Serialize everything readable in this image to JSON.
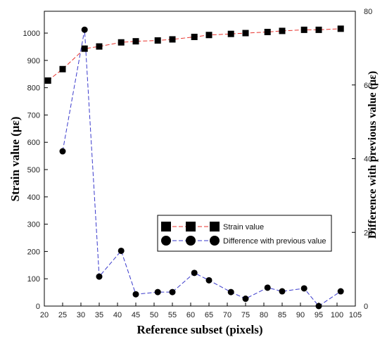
{
  "chart_data": {
    "type": "line",
    "xlabel": "Reference subset (pixels)",
    "ylabel": "Strain value (με)",
    "y2label": "Difference with previous value (με)",
    "xlim": [
      20,
      105
    ],
    "ylim": [
      0,
      1080
    ],
    "y2lim": [
      0,
      80
    ],
    "x_ticks": [
      20,
      25,
      30,
      35,
      40,
      45,
      50,
      55,
      60,
      65,
      70,
      75,
      80,
      85,
      90,
      95,
      100,
      105
    ],
    "y_ticks": [
      0,
      100,
      200,
      300,
      400,
      500,
      600,
      700,
      800,
      900,
      1000
    ],
    "y2_ticks": [
      0,
      20,
      40,
      60,
      80
    ],
    "grid": false,
    "legend_position": "bottom-right",
    "series": [
      {
        "name": "Strain value",
        "axis": "left",
        "marker": "square",
        "marker_color": "#000000",
        "line_color": "#e8332d",
        "line_style": "dashed",
        "x": [
          21,
          25,
          31,
          35,
          41,
          45,
          51,
          55,
          61,
          65,
          71,
          75,
          81,
          85,
          91,
          95,
          101
        ],
        "y": [
          826,
          868,
          943,
          951,
          966,
          970,
          973,
          977,
          986,
          993,
          997,
          1000,
          1004,
          1008,
          1012,
          1012,
          1016
        ]
      },
      {
        "name": "Difference with previous value",
        "axis": "right",
        "marker": "circle",
        "marker_color": "#000000",
        "line_color": "#3a3acc",
        "line_style": "dashed",
        "x": [
          25,
          31,
          35,
          41,
          45,
          51,
          55,
          61,
          65,
          71,
          75,
          81,
          85,
          91,
          95,
          101
        ],
        "y": [
          42,
          75,
          8,
          15,
          3.2,
          3.8,
          3.8,
          9,
          7,
          3.8,
          2,
          5,
          4,
          4.8,
          0,
          4
        ]
      }
    ]
  }
}
